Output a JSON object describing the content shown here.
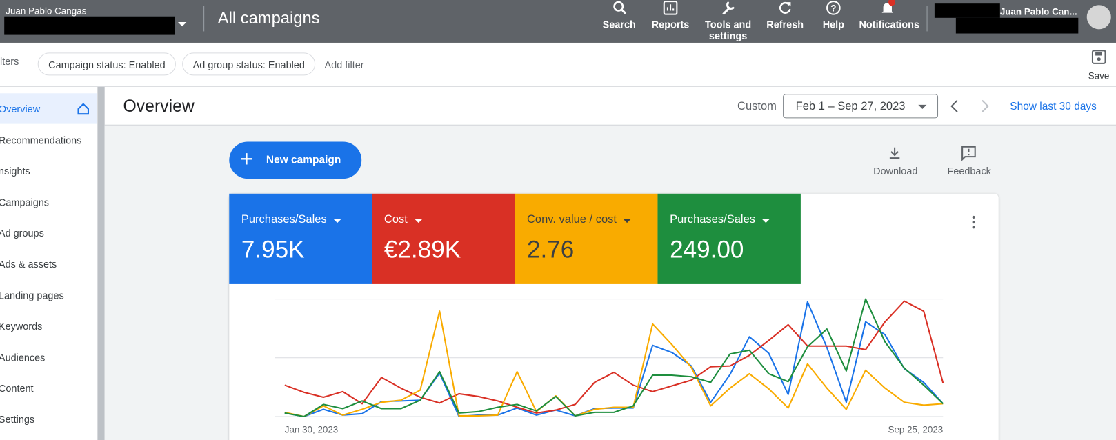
{
  "header": {
    "account_name": "Juan Pablo Cangas",
    "page_title": "All campaigns",
    "actions": [
      "Search",
      "Reports",
      "Tools and settings",
      "Refresh",
      "Help",
      "Notifications"
    ],
    "user_name": "Juan Pablo Can..."
  },
  "filters": {
    "label": "lters",
    "chips": [
      "Campaign status: Enabled",
      "Ad group status: Enabled"
    ],
    "add": "Add filter",
    "save": "Save"
  },
  "sidebar": {
    "items": [
      "Overview",
      "Recommendations",
      "nsights",
      "Campaigns",
      "Ad groups",
      "Ads & assets",
      "Landing pages",
      "Keywords",
      "Audiences",
      "Content",
      "Settings"
    ]
  },
  "overview": {
    "title": "Overview",
    "date_label": "Custom",
    "date_range": "Feb 1 – Sep 27, 2023",
    "show_last": "Show last 30 days"
  },
  "toolbar": {
    "new_campaign": "New campaign",
    "download": "Download",
    "feedback": "Feedback"
  },
  "chart_data": {
    "type": "line",
    "categories": [
      "Jan 30, 2023",
      null,
      null,
      null,
      null,
      null,
      null,
      null,
      null,
      null,
      null,
      null,
      null,
      null,
      null,
      null,
      null,
      null,
      null,
      null,
      null,
      null,
      null,
      null,
      null,
      null,
      null,
      null,
      null,
      null,
      null,
      null,
      null,
      null,
      "Sep 25, 2023"
    ],
    "ylim": [
      0,
      100
    ],
    "yticks": [
      0,
      50,
      100
    ],
    "grid": true,
    "series": [
      {
        "name": "Purchases/Sales",
        "value_label": "7.95K",
        "color": "#1a73e8",
        "values": [
          3.0,
          0,
          6.1,
          1.2,
          2.4,
          12.7,
          13.3,
          13.9,
          37.0,
          0,
          1.2,
          1.2,
          7.3,
          1.2,
          5.5,
          0.6,
          6.7,
          7.3,
          7.3,
          60.6,
          54.5,
          43.0,
          12.1,
          35.8,
          67.9,
          53.9,
          18.8,
          97.6,
          58.8,
          12.1,
          80.6,
          69.7,
          40.6,
          29.1,
          10.9
        ]
      },
      {
        "name": "Cost",
        "value_label": "€2.89K",
        "color": "#d93025",
        "values": [
          26.7,
          20.6,
          16.4,
          21.2,
          10.9,
          33.3,
          24.2,
          16.4,
          11.5,
          19.4,
          17.0,
          13.3,
          7.9,
          3.0,
          5.5,
          10.3,
          29.1,
          37.6,
          26.7,
          21.2,
          26.1,
          30.9,
          42.4,
          43.0,
          52.1,
          64.8,
          78.2,
          60.0,
          60.0,
          60.0,
          57.0,
          80.6,
          98.2,
          89.7,
          28.5
        ]
      },
      {
        "name": "Conv. value / cost",
        "value_label": "2.76",
        "color": "#f9ab00",
        "values": [
          3.6,
          0,
          9.1,
          1.2,
          6.1,
          12.1,
          13.9,
          22.4,
          89.7,
          0.6,
          0.6,
          1.2,
          38.2,
          4.2,
          17.6,
          0.6,
          6.1,
          7.9,
          7.9,
          78.8,
          61.2,
          41.8,
          9.1,
          24.2,
          36.4,
          23.6,
          7.3,
          44.8,
          24.2,
          6.1,
          39.4,
          24.2,
          12.1,
          9.7,
          10.9
        ]
      },
      {
        "name": "Purchases/Sales",
        "value_label": "249.00",
        "color": "#1e8e3e",
        "values": [
          3.0,
          0,
          10.3,
          6.7,
          13.3,
          6.7,
          6.7,
          13.9,
          38.2,
          3.0,
          4.2,
          7.9,
          10.3,
          4.8,
          17.0,
          0.6,
          3.6,
          3.6,
          9.1,
          35.2,
          35.2,
          33.9,
          29.1,
          53.3,
          56.4,
          36.4,
          29.7,
          59.4,
          74.5,
          38.8,
          100,
          63.6,
          41.2,
          26.7,
          10.9
        ]
      }
    ]
  }
}
